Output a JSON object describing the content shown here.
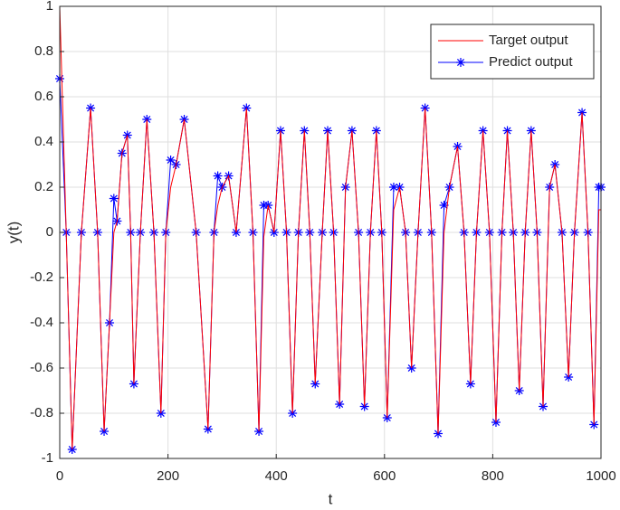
{
  "chart_data": {
    "type": "line",
    "xlabel": "t",
    "ylabel": "y(t)",
    "xlim": [
      0,
      1000
    ],
    "ylim": [
      -1,
      1
    ],
    "xticks": [
      0,
      200,
      400,
      600,
      800,
      1000
    ],
    "yticks": [
      -1,
      -0.8,
      -0.6,
      -0.4,
      -0.2,
      0,
      0.2,
      0.4,
      0.6,
      0.8,
      1
    ],
    "grid": true,
    "legend": "upper right",
    "x": [
      0,
      12,
      23,
      40,
      57,
      70,
      82,
      92,
      100,
      106,
      115,
      125,
      131,
      137,
      149,
      161,
      174,
      187,
      196,
      205,
      215,
      230,
      252,
      274,
      285,
      292,
      300,
      312,
      326,
      345,
      357,
      368,
      377,
      385,
      396,
      408,
      419,
      430,
      441,
      452,
      462,
      472,
      485,
      495,
      506,
      517,
      528,
      540,
      552,
      563,
      574,
      585,
      595,
      605,
      617,
      628,
      639,
      650,
      662,
      675,
      687,
      699,
      710,
      720,
      735,
      747,
      759,
      770,
      782,
      794,
      806,
      817,
      827,
      838,
      849,
      860,
      871,
      882,
      893,
      905,
      915,
      928,
      940,
      951,
      965,
      976,
      987,
      996,
      1000
    ],
    "series": [
      {
        "name": "Target output",
        "color": "#ff0000",
        "marker": false,
        "values": [
          1,
          0,
          -0.96,
          0,
          0.55,
          0,
          -0.88,
          -0.4,
          0,
          0.05,
          0.35,
          0.43,
          0,
          -0.67,
          0,
          0.5,
          0,
          -0.8,
          0,
          0.2,
          0.3,
          0.5,
          0,
          -0.87,
          0,
          0.12,
          0.2,
          0.25,
          0,
          0.55,
          0,
          -0.88,
          -0.02,
          0.12,
          0,
          0.45,
          0,
          -0.8,
          0,
          0.45,
          0,
          -0.67,
          0,
          0.45,
          0,
          -0.76,
          0.2,
          0.45,
          0,
          -0.77,
          0,
          0.45,
          0,
          -0.82,
          0.1,
          0.2,
          0,
          -0.6,
          0,
          0.55,
          0,
          -0.89,
          0,
          0.2,
          0.38,
          0,
          -0.67,
          0,
          0.45,
          0,
          -0.84,
          0,
          0.45,
          0,
          -0.7,
          0,
          0.45,
          0,
          -0.77,
          0.2,
          0.3,
          0,
          -0.64,
          0,
          0.53,
          0,
          -0.85,
          0.1,
          0.1
        ]
      },
      {
        "name": "Predict output",
        "color": "#0000ff",
        "marker": true,
        "values": [
          0.68,
          0,
          -0.96,
          0,
          0.55,
          0,
          -0.88,
          -0.4,
          0.15,
          0.05,
          0.35,
          0.43,
          0,
          -0.67,
          0,
          0.5,
          0,
          -0.8,
          0,
          0.32,
          0.3,
          0.5,
          0,
          -0.87,
          0,
          0.25,
          0.2,
          0.25,
          0,
          0.55,
          0,
          -0.88,
          0.12,
          0.12,
          0,
          0.45,
          0,
          -0.8,
          0,
          0.45,
          0,
          -0.67,
          0,
          0.45,
          0,
          -0.76,
          0.2,
          0.45,
          0,
          -0.77,
          0,
          0.45,
          0,
          -0.82,
          0.2,
          0.2,
          0,
          -0.6,
          0,
          0.55,
          0,
          -0.89,
          0.12,
          0.2,
          0.38,
          0,
          -0.67,
          0,
          0.45,
          0,
          -0.84,
          0,
          0.45,
          0,
          -0.7,
          0,
          0.45,
          0,
          -0.77,
          0.2,
          0.3,
          0,
          -0.64,
          0,
          0.53,
          0,
          -0.85,
          0.2,
          0.2
        ]
      }
    ]
  }
}
